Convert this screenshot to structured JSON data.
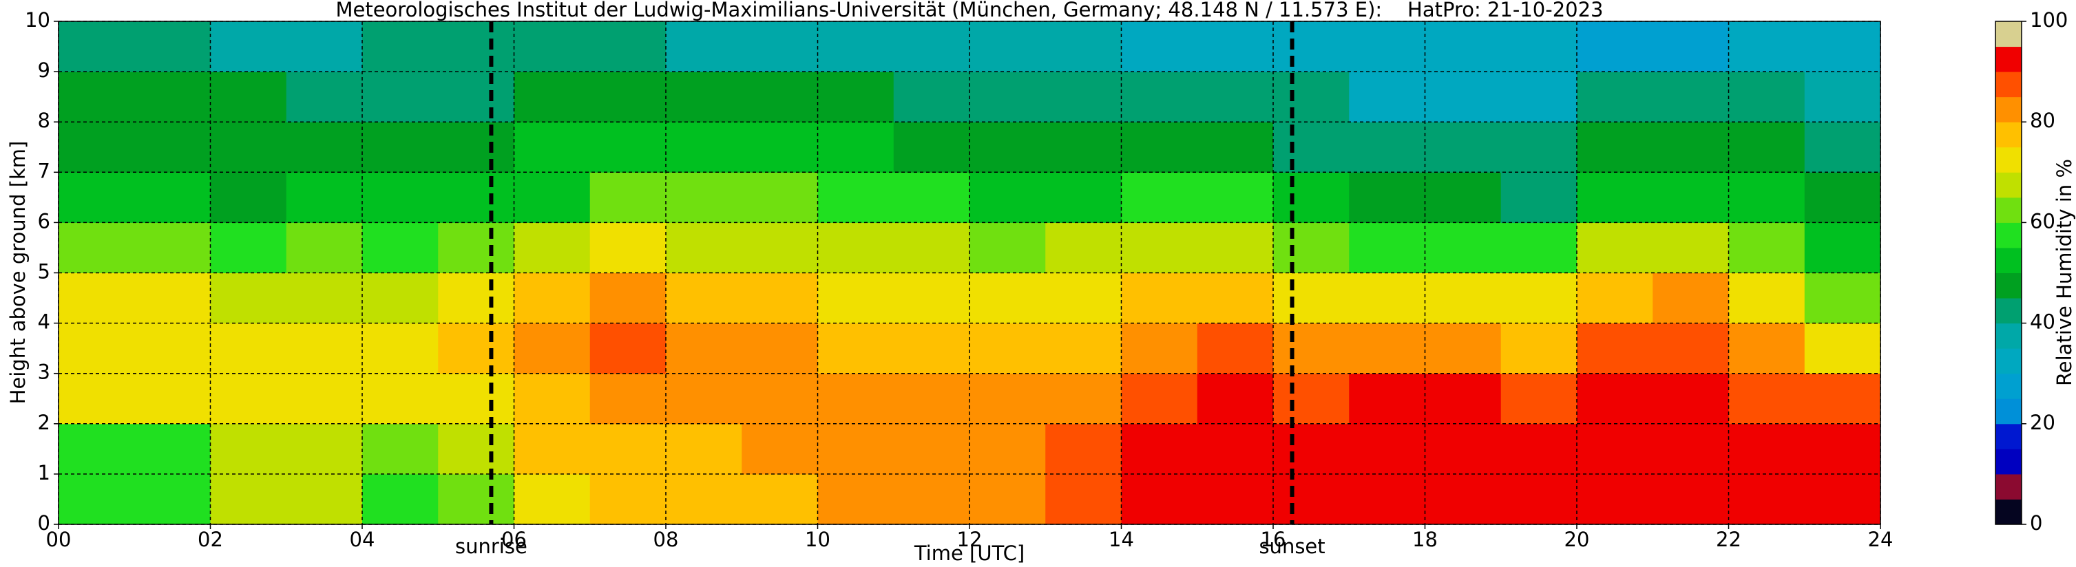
{
  "chart_data": {
    "type": "heatmap",
    "title": "Meteorologisches Institut der Ludwig-Maximilians-Universität (München, Germany; 48.148 N / 11.573 E):    HatPro: 21-10-2023",
    "xlabel": "Time [UTC]",
    "ylabel": "Height above ground [km]",
    "x": [
      0,
      1,
      2,
      3,
      4,
      5,
      6,
      7,
      8,
      9,
      10,
      11,
      12,
      13,
      14,
      15,
      16,
      17,
      18,
      19,
      20,
      21,
      22,
      23
    ],
    "y": [
      0,
      1,
      2,
      3,
      4,
      5,
      6,
      7,
      8,
      9
    ],
    "z": [
      [
        57,
        58,
        70,
        72,
        72,
        62,
        52,
        48,
        48,
        42
      ],
      [
        57,
        58,
        72,
        72,
        72,
        62,
        50,
        48,
        47,
        42
      ],
      [
        65,
        66,
        72,
        72,
        66,
        58,
        48,
        46,
        45,
        38
      ],
      [
        68,
        66,
        74,
        72,
        68,
        60,
        50,
        46,
        44,
        38
      ],
      [
        58,
        60,
        72,
        74,
        66,
        58,
        50,
        46,
        44,
        40
      ],
      [
        62,
        66,
        74,
        76,
        70,
        62,
        52,
        48,
        44,
        40
      ],
      [
        72,
        76,
        78,
        80,
        78,
        66,
        54,
        50,
        46,
        40
      ],
      [
        76,
        78,
        82,
        86,
        80,
        70,
        62,
        52,
        48,
        40
      ],
      [
        76,
        78,
        80,
        80,
        76,
        68,
        60,
        50,
        45,
        38
      ],
      [
        78,
        80,
        80,
        80,
        76,
        68,
        60,
        50,
        46,
        38
      ],
      [
        82,
        84,
        80,
        78,
        74,
        68,
        58,
        50,
        46,
        38
      ],
      [
        80,
        80,
        80,
        78,
        74,
        66,
        56,
        48,
        44,
        36
      ],
      [
        82,
        84,
        80,
        76,
        72,
        64,
        54,
        48,
        44,
        36
      ],
      [
        88,
        86,
        82,
        78,
        74,
        66,
        54,
        48,
        44,
        36
      ],
      [
        92,
        92,
        88,
        84,
        76,
        66,
        56,
        48,
        42,
        34
      ],
      [
        92,
        92,
        90,
        86,
        78,
        66,
        56,
        48,
        42,
        34
      ],
      [
        92,
        92,
        88,
        84,
        74,
        60,
        52,
        44,
        40,
        34
      ],
      [
        92,
        92,
        90,
        80,
        72,
        56,
        46,
        40,
        30,
        30
      ],
      [
        92,
        92,
        90,
        80,
        70,
        56,
        46,
        40,
        30,
        30
      ],
      [
        92,
        92,
        88,
        78,
        70,
        56,
        44,
        40,
        30,
        30
      ],
      [
        92,
        92,
        90,
        86,
        78,
        66,
        54,
        46,
        40,
        28
      ],
      [
        92,
        92,
        90,
        88,
        80,
        66,
        54,
        46,
        40,
        28
      ],
      [
        92,
        92,
        88,
        80,
        70,
        62,
        54,
        46,
        40,
        30
      ],
      [
        92,
        92,
        86,
        74,
        62,
        52,
        46,
        42,
        38,
        30
      ]
    ],
    "xlim": [
      0,
      24
    ],
    "xticks": [
      {
        "value": 0,
        "label": "00"
      },
      {
        "value": 2,
        "label": "02"
      },
      {
        "value": 4,
        "label": "04"
      },
      {
        "value": 6,
        "label": "06"
      },
      {
        "value": 8,
        "label": "08"
      },
      10,
      12,
      14,
      16,
      18,
      20,
      22,
      24
    ],
    "ylim": [
      0,
      10
    ],
    "yticks": [
      0,
      1,
      2,
      3,
      4,
      5,
      6,
      7,
      8,
      9,
      10
    ],
    "grid": true,
    "clim": [
      0,
      100
    ],
    "colormap": [
      "#050520",
      "#8b0a30",
      "#0000c0",
      "#0018d0",
      "#0090d8",
      "#00a0d0",
      "#00a8c0",
      "#00a8a8",
      "#00a070",
      "#00a020",
      "#00c020",
      "#20e020",
      "#70e010",
      "#c0e000",
      "#f0e000",
      "#ffc000",
      "#ff9000",
      "#ff5000",
      "#f00000",
      "#d8d090"
    ],
    "colorbar_label": "Relative Humidity in %",
    "colorbar_ticks": [
      0,
      20,
      40,
      60,
      80,
      100
    ],
    "annotations": [
      {
        "text": "sunrise",
        "x": 5.7
      },
      {
        "text": "sunset",
        "x": 16.25
      }
    ]
  }
}
